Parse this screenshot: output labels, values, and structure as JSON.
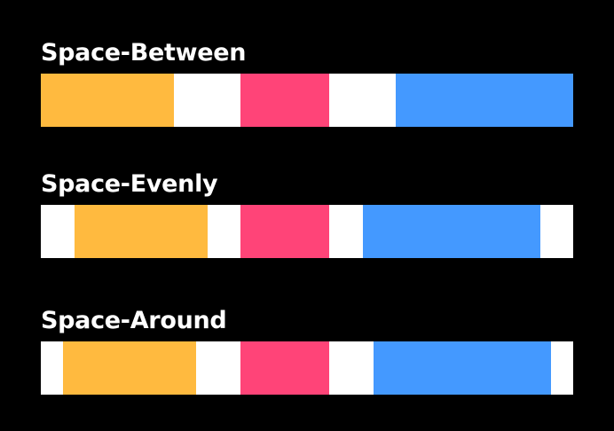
{
  "sections": [
    {
      "title": "Space-Between"
    },
    {
      "title": "Space-Evenly"
    },
    {
      "title": "Space-Around"
    }
  ]
}
